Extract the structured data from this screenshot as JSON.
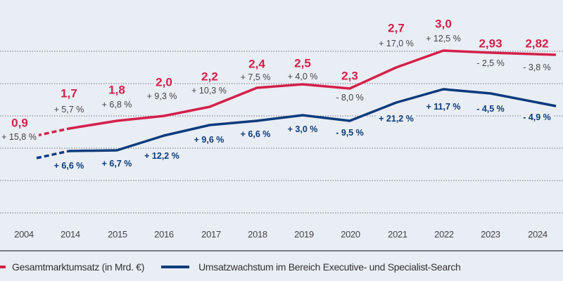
{
  "chart_data": {
    "type": "line",
    "categories": [
      "2004",
      "2014",
      "2015",
      "2016",
      "2017",
      "2018",
      "2019",
      "2020",
      "2021",
      "2022",
      "2023",
      "2024"
    ],
    "series": [
      {
        "name": "Gesamtmarktumsatz (in Mrd. €)",
        "color": "#d4204a",
        "values": [
          0.9,
          1.7,
          1.8,
          2.0,
          2.2,
          2.4,
          2.5,
          2.3,
          2.7,
          3.0,
          2.93,
          2.82
        ],
        "value_labels": [
          "0,9",
          "1,7",
          "1,8",
          "2,0",
          "2,2",
          "2,4",
          "2,5",
          "2,3",
          "2,7",
          "3,0",
          "2,93",
          "2,82"
        ],
        "growth_labels": [
          "+ 15,8 %",
          "+ 5,7 %",
          "+ 6,8 %",
          "+ 9,3 %",
          "+ 10,3 %",
          "+ 7,5 %",
          "+ 4,0 %",
          "- 8,0 %",
          "+ 17,0 %",
          "+ 12,5 %",
          "- 2,5 %",
          "- 3,8 %"
        ]
      },
      {
        "name": "Umsatzwachstum im Bereich Executive- und Specialist-Search",
        "color": "#0b3b7c",
        "growth_labels": [
          "+ 6,6 %",
          "+ 6,7 %",
          "+ 12,2 %",
          "+ 9,6 %",
          "+ 6,6 %",
          "+ 3,0 %",
          "- 9,5 %",
          "+ 21,2 %",
          "+ 11,7 %",
          "- 4,5 %",
          "- 4,9 %"
        ]
      }
    ],
    "dashed_segment": [
      "2004",
      "2014"
    ],
    "grid": "horizontal-dotted",
    "legend_position": "bottom"
  }
}
